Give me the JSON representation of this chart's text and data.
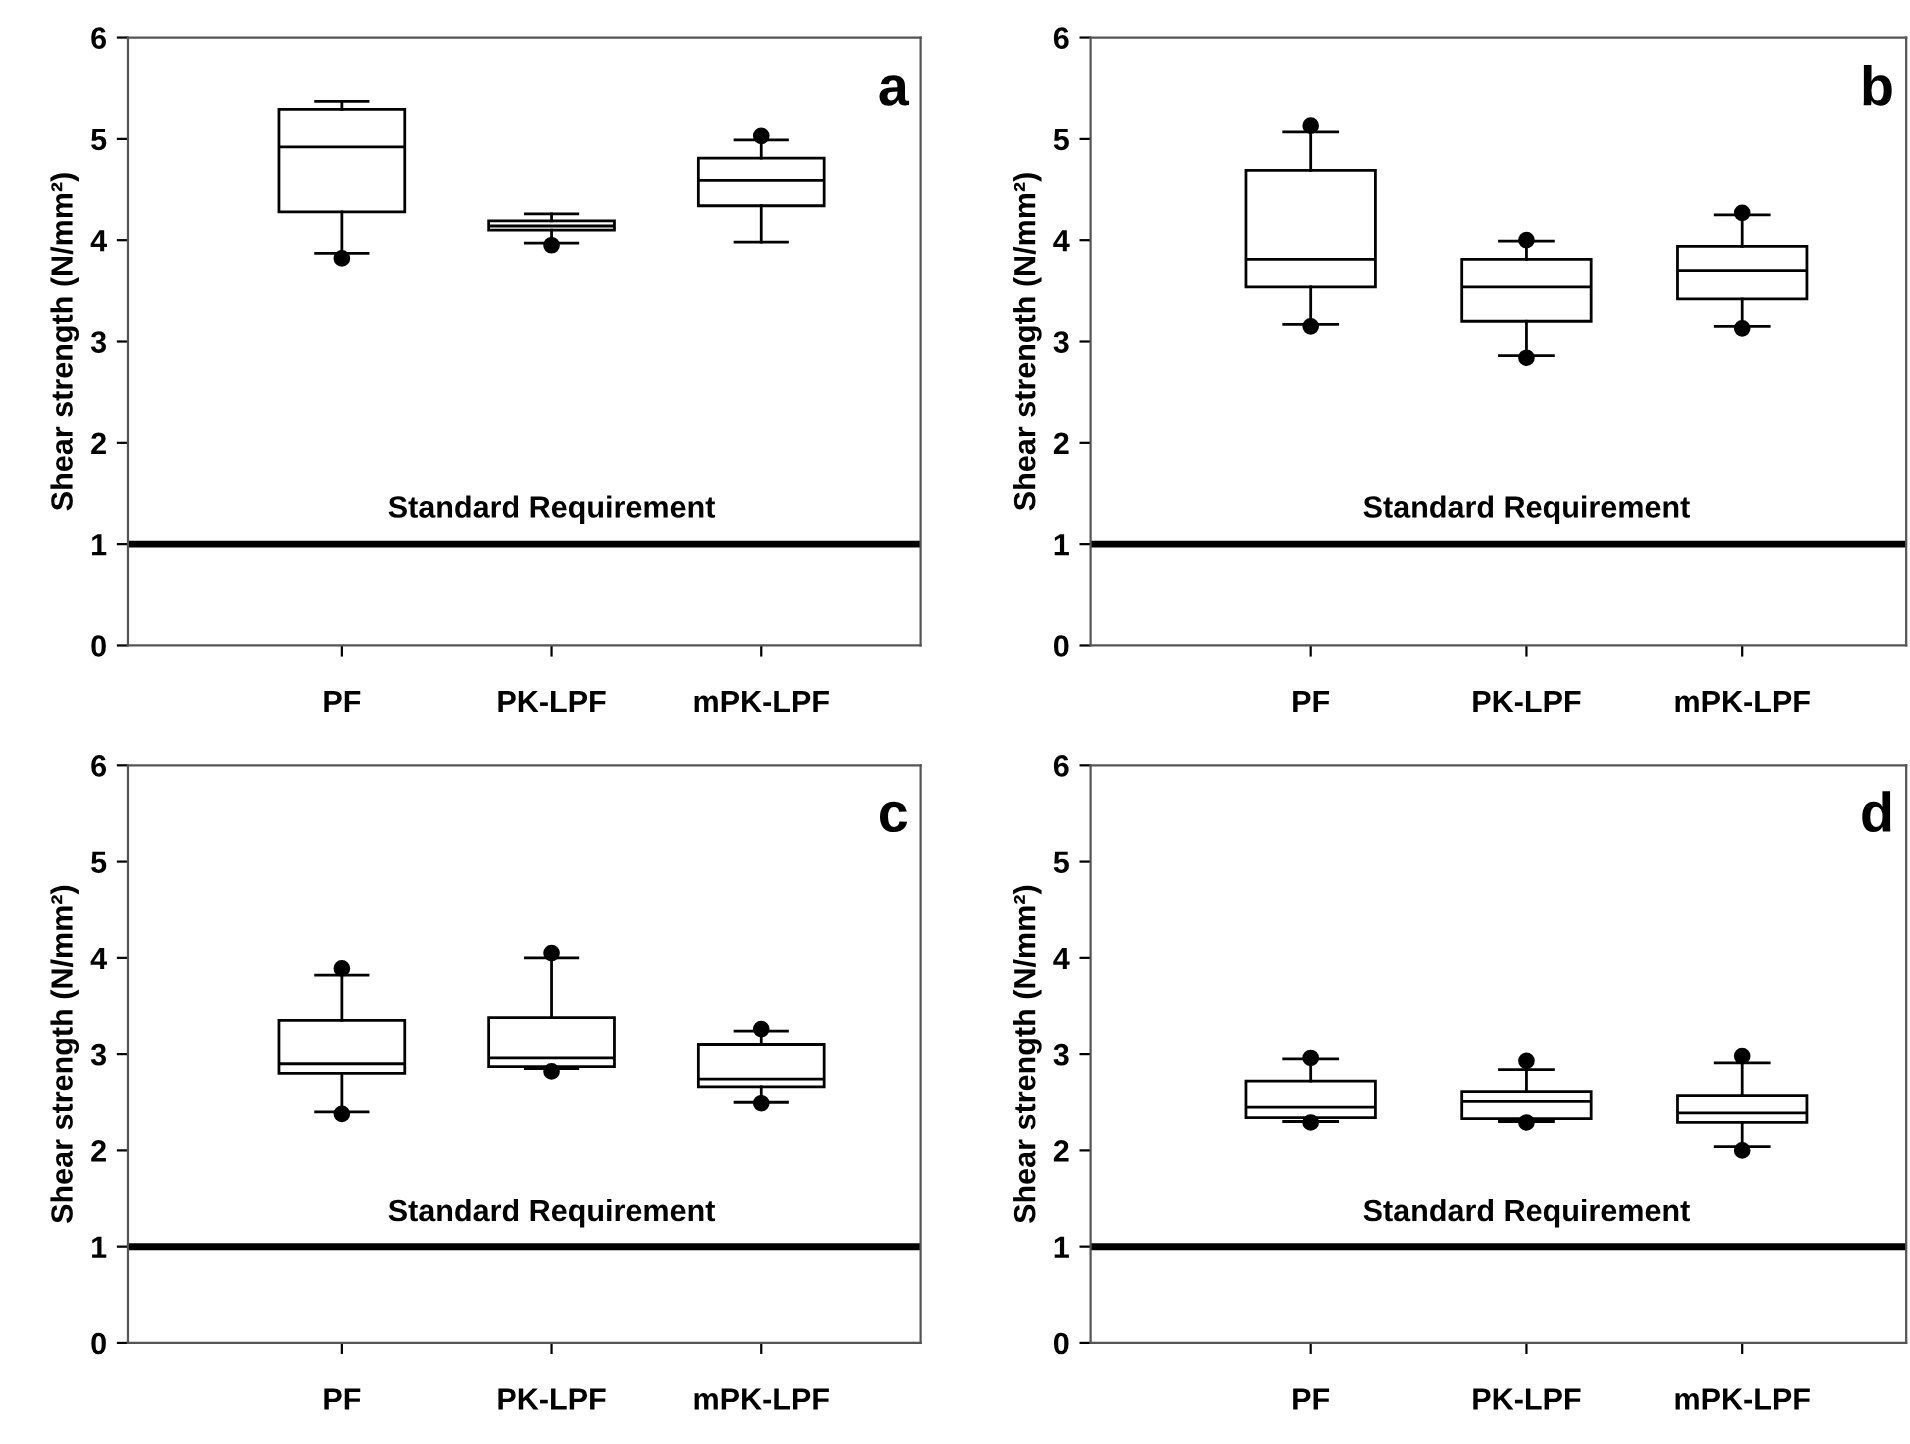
{
  "chart_data": [
    {
      "type": "box",
      "ylabel": "Shear strength (N/mm²)",
      "categories": [
        "PF",
        "PK-LPF",
        "mPK-LPF"
      ],
      "ylim": [
        0,
        6
      ],
      "yticks": [
        0,
        1,
        2,
        3,
        4,
        5,
        6
      ],
      "grid": false,
      "annotations": [
        "a"
      ],
      "ref_lines": [
        {
          "axis": "y",
          "value": 1,
          "label": "Standard Requirement",
          "color": "#000000"
        }
      ],
      "boxes": [
        {
          "low": 3.87,
          "q1": 4.28,
          "median": 4.92,
          "q3": 5.29,
          "high": 5.37,
          "outliers": [
            3.82
          ]
        },
        {
          "low": 3.97,
          "q1": 4.1,
          "median": 4.14,
          "q3": 4.19,
          "high": 4.26,
          "outliers": [
            3.95
          ]
        },
        {
          "low": 3.98,
          "q1": 4.34,
          "median": 4.59,
          "q3": 4.81,
          "high": 4.99,
          "outliers": [
            5.03
          ]
        }
      ]
    },
    {
      "type": "box",
      "ylabel": "Shear strength (N/mm²)",
      "categories": [
        "PF",
        "PK-LPF",
        "mPK-LPF"
      ],
      "ylim": [
        0,
        6
      ],
      "yticks": [
        0,
        1,
        2,
        3,
        4,
        5,
        6
      ],
      "grid": false,
      "annotations": [
        "b"
      ],
      "ref_lines": [
        {
          "axis": "y",
          "value": 1,
          "label": "Standard Requirement",
          "color": "#000000"
        }
      ],
      "boxes": [
        {
          "low": 3.17,
          "q1": 3.54,
          "median": 3.81,
          "q3": 4.69,
          "high": 5.07,
          "outliers": [
            3.15,
            5.13
          ]
        },
        {
          "low": 2.86,
          "q1": 3.2,
          "median": 3.54,
          "q3": 3.81,
          "high": 3.99,
          "outliers": [
            2.84,
            4.0
          ]
        },
        {
          "low": 3.15,
          "q1": 3.42,
          "median": 3.7,
          "q3": 3.94,
          "high": 4.25,
          "outliers": [
            3.13,
            4.27
          ]
        }
      ]
    },
    {
      "type": "box",
      "ylabel": "Shear strength (N/mm²)",
      "categories": [
        "PF",
        "PK-LPF",
        "mPK-LPF"
      ],
      "ylim": [
        0,
        6
      ],
      "yticks": [
        0,
        1,
        2,
        3,
        4,
        5,
        6
      ],
      "grid": false,
      "annotations": [
        "c"
      ],
      "ref_lines": [
        {
          "axis": "y",
          "value": 1,
          "label": "Standard Requirement",
          "color": "#000000"
        }
      ],
      "boxes": [
        {
          "low": 2.4,
          "q1": 2.8,
          "median": 2.9,
          "q3": 3.35,
          "high": 3.82,
          "outliers": [
            2.38,
            3.89
          ]
        },
        {
          "low": 2.85,
          "q1": 2.87,
          "median": 2.96,
          "q3": 3.38,
          "high": 4.0,
          "outliers": [
            2.82,
            4.05
          ]
        },
        {
          "low": 2.5,
          "q1": 2.66,
          "median": 2.74,
          "q3": 3.1,
          "high": 3.24,
          "outliers": [
            2.49,
            3.26
          ]
        }
      ]
    },
    {
      "type": "box",
      "ylabel": "Shear strength (N/mm²)",
      "categories": [
        "PF",
        "PK-LPF",
        "mPK-LPF"
      ],
      "ylim": [
        0,
        6
      ],
      "yticks": [
        0,
        1,
        2,
        3,
        4,
        5,
        6
      ],
      "grid": false,
      "annotations": [
        "d"
      ],
      "ref_lines": [
        {
          "axis": "y",
          "value": 1,
          "label": "Standard Requirement",
          "color": "#000000"
        }
      ],
      "boxes": [
        {
          "low": 2.3,
          "q1": 2.34,
          "median": 2.45,
          "q3": 2.72,
          "high": 2.95,
          "outliers": [
            2.29,
            2.96
          ]
        },
        {
          "low": 2.3,
          "q1": 2.33,
          "median": 2.51,
          "q3": 2.61,
          "high": 2.84,
          "outliers": [
            2.29,
            2.93
          ]
        },
        {
          "low": 2.04,
          "q1": 2.29,
          "median": 2.39,
          "q3": 2.57,
          "high": 2.91,
          "outliers": [
            2.0,
            2.98
          ]
        }
      ]
    }
  ]
}
